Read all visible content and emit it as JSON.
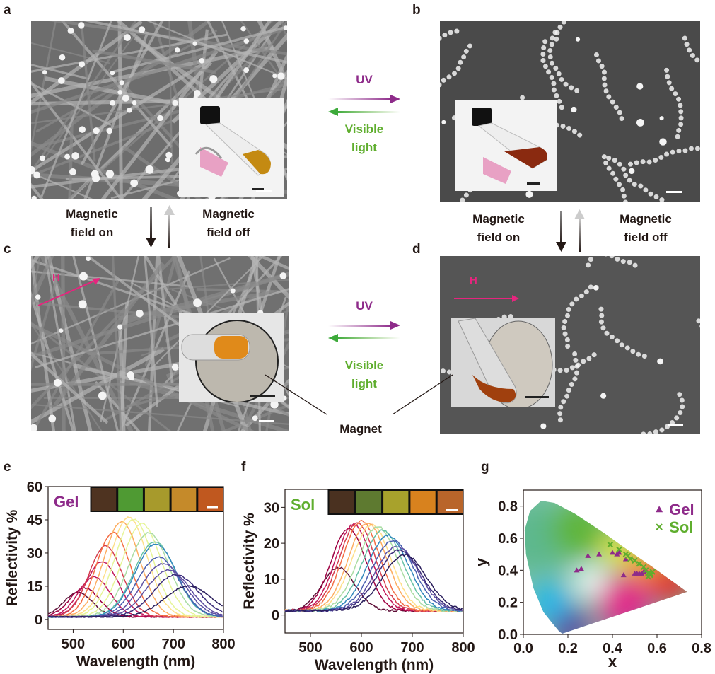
{
  "panels": {
    "a": "a",
    "b": "b",
    "c": "c",
    "d": "d",
    "e": "e",
    "f": "f",
    "g": "g"
  },
  "transitions": {
    "uv": "UV",
    "visible_line1": "Visible",
    "visible_line2": "light",
    "mag_on_line1": "Magnetic",
    "mag_on_line2": "field on",
    "mag_off_line1": "Magnetic",
    "mag_off_line2": "field off",
    "magnet": "Magnet",
    "field_symbol": "H"
  },
  "colors": {
    "uv": "#8e2b8a",
    "visible": "#5fae2e",
    "field": "#e6257e",
    "gel": "#8e2b8a",
    "sol": "#5fae2e"
  },
  "chart_data": [
    {
      "type": "line",
      "panel": "e",
      "legend_label": "Gel",
      "xlabel": "Wavelength (nm)",
      "ylabel": "Reflectivity %",
      "xlim": [
        450,
        800
      ],
      "ylim": [
        -4.5,
        60
      ],
      "xticks": [
        "500",
        "600",
        "700",
        "800"
      ],
      "yticks": [
        "0",
        "15",
        "30",
        "45",
        "60"
      ],
      "swatches": [
        "#4e3320",
        "#4f9a33",
        "#a79a2c",
        "#c58a2a",
        "#c0581f"
      ],
      "series_peaks": [
        {
          "peak_nm": 510,
          "peak_pct": 11
        },
        {
          "peak_nm": 523,
          "peak_pct": 13
        },
        {
          "peak_nm": 542,
          "peak_pct": 18
        },
        {
          "peak_nm": 558,
          "peak_pct": 25
        },
        {
          "peak_nm": 565,
          "peak_pct": 32
        },
        {
          "peak_nm": 580,
          "peak_pct": 38
        },
        {
          "peak_nm": 597,
          "peak_pct": 43
        },
        {
          "peak_nm": 611,
          "peak_pct": 45
        },
        {
          "peak_nm": 621,
          "peak_pct": 44
        },
        {
          "peak_nm": 637,
          "peak_pct": 42
        },
        {
          "peak_nm": 651,
          "peak_pct": 38
        },
        {
          "peak_nm": 663,
          "peak_pct": 34
        },
        {
          "peak_nm": 665,
          "peak_pct": 33
        },
        {
          "peak_nm": 670,
          "peak_pct": 27
        },
        {
          "peak_nm": 680,
          "peak_pct": 24
        },
        {
          "peak_nm": 690,
          "peak_pct": 21
        },
        {
          "peak_nm": 705,
          "peak_pct": 19
        },
        {
          "peak_nm": 730,
          "peak_pct": 14
        }
      ]
    },
    {
      "type": "line",
      "panel": "f",
      "legend_label": "Sol",
      "xlabel": "Wavelength (nm)",
      "ylabel": "Reflectivity %",
      "xlim": [
        450,
        800
      ],
      "ylim": [
        -5,
        35
      ],
      "xticks": [
        "500",
        "600",
        "700",
        "800"
      ],
      "yticks": [
        "0",
        "10",
        "20",
        "30"
      ],
      "swatches": [
        "#4a3120",
        "#5e7a30",
        "#a8a22c",
        "#d8821e",
        "#b9652a"
      ],
      "series_peaks": [
        {
          "peak_nm": 555,
          "peak_pct": 12
        },
        {
          "peak_nm": 575,
          "peak_pct": 23
        },
        {
          "peak_nm": 585,
          "peak_pct": 24
        },
        {
          "peak_nm": 592,
          "peak_pct": 24.5
        },
        {
          "peak_nm": 600,
          "peak_pct": 25
        },
        {
          "peak_nm": 612,
          "peak_pct": 24.5
        },
        {
          "peak_nm": 620,
          "peak_pct": 24
        },
        {
          "peak_nm": 632,
          "peak_pct": 23.5
        },
        {
          "peak_nm": 642,
          "peak_pct": 22.5
        },
        {
          "peak_nm": 652,
          "peak_pct": 21
        },
        {
          "peak_nm": 662,
          "peak_pct": 19.5
        },
        {
          "peak_nm": 670,
          "peak_pct": 18
        },
        {
          "peak_nm": 675,
          "peak_pct": 17
        },
        {
          "peak_nm": 685,
          "peak_pct": 15.5
        }
      ]
    },
    {
      "type": "scatter",
      "panel": "g",
      "xlabel": "x",
      "ylabel": "y",
      "xlim": [
        0,
        0.8
      ],
      "ylim": [
        0,
        0.9
      ],
      "xticks": [
        "0.0",
        "0.2",
        "0.4",
        "0.6",
        "0.8"
      ],
      "yticks": [
        "0.0",
        "0.2",
        "0.4",
        "0.6",
        "0.8"
      ],
      "legend_position": "top-right",
      "series": [
        {
          "name": "Gel",
          "marker": "triangle",
          "points": [
            [
              0.24,
              0.4
            ],
            [
              0.26,
              0.41
            ],
            [
              0.29,
              0.49
            ],
            [
              0.34,
              0.5
            ],
            [
              0.4,
              0.51
            ],
            [
              0.42,
              0.5
            ],
            [
              0.43,
              0.51
            ],
            [
              0.46,
              0.47
            ],
            [
              0.45,
              0.37
            ],
            [
              0.5,
              0.38
            ],
            [
              0.51,
              0.38
            ],
            [
              0.52,
              0.38
            ],
            [
              0.53,
              0.38
            ],
            [
              0.54,
              0.39
            ],
            [
              0.55,
              0.4
            ]
          ]
        },
        {
          "name": "Sol",
          "marker": "cross",
          "points": [
            [
              0.39,
              0.56
            ],
            [
              0.43,
              0.53
            ],
            [
              0.46,
              0.5
            ],
            [
              0.47,
              0.49
            ],
            [
              0.48,
              0.47
            ],
            [
              0.5,
              0.46
            ],
            [
              0.52,
              0.44
            ],
            [
              0.54,
              0.42
            ],
            [
              0.55,
              0.4
            ],
            [
              0.56,
              0.38
            ],
            [
              0.57,
              0.37
            ],
            [
              0.56,
              0.36
            ],
            [
              0.57,
              0.38
            ],
            [
              0.58,
              0.39
            ]
          ]
        }
      ]
    }
  ]
}
